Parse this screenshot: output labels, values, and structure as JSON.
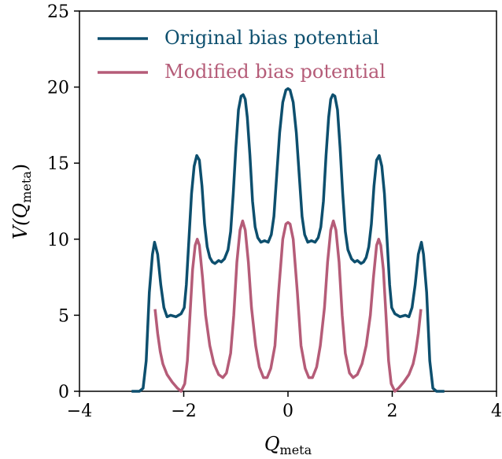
{
  "chart_data": {
    "type": "line",
    "xlabel": "Q",
    "xlabel_sub": "meta",
    "ylabel": "V(Q",
    "ylabel_sub": "meta",
    "ylabel_close": ")",
    "xlim": [
      -4,
      4
    ],
    "ylim": [
      0,
      25
    ],
    "xticks": [
      -4,
      -2,
      0,
      2,
      4
    ],
    "xtick_labels": [
      "−4",
      "−2",
      "0",
      "2",
      "4"
    ],
    "yticks": [
      0,
      5,
      10,
      15,
      20,
      25
    ],
    "ytick_labels": [
      "0",
      "5",
      "10",
      "15",
      "20",
      "25"
    ],
    "grid": false,
    "legend_position": "top-left",
    "series": [
      {
        "name": "Original bias potential",
        "color": "#0d4f6e",
        "points": [
          [
            -3.0,
            0.0
          ],
          [
            -2.85,
            0.0
          ],
          [
            -2.78,
            0.2
          ],
          [
            -2.72,
            2.0
          ],
          [
            -2.66,
            6.5
          ],
          [
            -2.6,
            9.0
          ],
          [
            -2.56,
            9.8
          ],
          [
            -2.5,
            9.0
          ],
          [
            -2.44,
            7.0
          ],
          [
            -2.38,
            5.5
          ],
          [
            -2.32,
            4.9
          ],
          [
            -2.25,
            5.0
          ],
          [
            -2.15,
            4.9
          ],
          [
            -2.05,
            5.1
          ],
          [
            -1.99,
            5.5
          ],
          [
            -1.95,
            7.0
          ],
          [
            -1.9,
            10.0
          ],
          [
            -1.85,
            13.0
          ],
          [
            -1.8,
            14.8
          ],
          [
            -1.75,
            15.5
          ],
          [
            -1.7,
            15.2
          ],
          [
            -1.65,
            13.5
          ],
          [
            -1.6,
            11.0
          ],
          [
            -1.55,
            9.5
          ],
          [
            -1.5,
            8.8
          ],
          [
            -1.45,
            8.5
          ],
          [
            -1.4,
            8.4
          ],
          [
            -1.33,
            8.6
          ],
          [
            -1.28,
            8.5
          ],
          [
            -1.22,
            8.7
          ],
          [
            -1.15,
            9.3
          ],
          [
            -1.1,
            10.5
          ],
          [
            -1.05,
            13.0
          ],
          [
            -1.0,
            16.0
          ],
          [
            -0.95,
            18.5
          ],
          [
            -0.9,
            19.4
          ],
          [
            -0.86,
            19.5
          ],
          [
            -0.82,
            19.2
          ],
          [
            -0.78,
            18.0
          ],
          [
            -0.73,
            15.5
          ],
          [
            -0.68,
            12.5
          ],
          [
            -0.63,
            10.8
          ],
          [
            -0.58,
            10.1
          ],
          [
            -0.52,
            9.8
          ],
          [
            -0.45,
            9.9
          ],
          [
            -0.38,
            9.8
          ],
          [
            -0.32,
            10.3
          ],
          [
            -0.27,
            11.5
          ],
          [
            -0.22,
            14.0
          ],
          [
            -0.16,
            17.0
          ],
          [
            -0.1,
            19.0
          ],
          [
            -0.04,
            19.8
          ],
          [
            0.0,
            19.9
          ],
          [
            0.04,
            19.8
          ],
          [
            0.1,
            19.0
          ],
          [
            0.16,
            17.0
          ],
          [
            0.22,
            14.0
          ],
          [
            0.27,
            11.5
          ],
          [
            0.32,
            10.3
          ],
          [
            0.38,
            9.8
          ],
          [
            0.45,
            9.9
          ],
          [
            0.52,
            9.8
          ],
          [
            0.58,
            10.1
          ],
          [
            0.63,
            10.8
          ],
          [
            0.68,
            12.5
          ],
          [
            0.73,
            15.5
          ],
          [
            0.78,
            18.0
          ],
          [
            0.82,
            19.2
          ],
          [
            0.86,
            19.5
          ],
          [
            0.9,
            19.4
          ],
          [
            0.95,
            18.5
          ],
          [
            1.0,
            16.0
          ],
          [
            1.05,
            13.0
          ],
          [
            1.1,
            10.5
          ],
          [
            1.15,
            9.3
          ],
          [
            1.22,
            8.7
          ],
          [
            1.28,
            8.5
          ],
          [
            1.33,
            8.6
          ],
          [
            1.4,
            8.4
          ],
          [
            1.45,
            8.5
          ],
          [
            1.5,
            8.8
          ],
          [
            1.55,
            9.5
          ],
          [
            1.6,
            11.0
          ],
          [
            1.65,
            13.5
          ],
          [
            1.7,
            15.2
          ],
          [
            1.75,
            15.5
          ],
          [
            1.8,
            14.8
          ],
          [
            1.85,
            13.0
          ],
          [
            1.9,
            10.0
          ],
          [
            1.95,
            7.0
          ],
          [
            1.99,
            5.5
          ],
          [
            2.05,
            5.1
          ],
          [
            2.15,
            4.9
          ],
          [
            2.25,
            5.0
          ],
          [
            2.32,
            4.9
          ],
          [
            2.38,
            5.5
          ],
          [
            2.44,
            7.0
          ],
          [
            2.5,
            9.0
          ],
          [
            2.56,
            9.8
          ],
          [
            2.6,
            9.0
          ],
          [
            2.66,
            6.5
          ],
          [
            2.72,
            2.0
          ],
          [
            2.78,
            0.2
          ],
          [
            2.85,
            0.0
          ],
          [
            3.0,
            0.0
          ]
        ]
      },
      {
        "name": "Modified bias potential",
        "color": "#b55c78",
        "points": [
          [
            -2.55,
            5.4
          ],
          [
            -2.5,
            3.8
          ],
          [
            -2.45,
            2.6
          ],
          [
            -2.4,
            1.8
          ],
          [
            -2.32,
            1.1
          ],
          [
            -2.22,
            0.6
          ],
          [
            -2.12,
            0.2
          ],
          [
            -2.05,
            0.0
          ],
          [
            -1.98,
            0.5
          ],
          [
            -1.93,
            2.0
          ],
          [
            -1.88,
            5.0
          ],
          [
            -1.83,
            8.0
          ],
          [
            -1.78,
            9.6
          ],
          [
            -1.74,
            10.0
          ],
          [
            -1.7,
            9.6
          ],
          [
            -1.64,
            7.5
          ],
          [
            -1.58,
            5.0
          ],
          [
            -1.5,
            3.0
          ],
          [
            -1.42,
            1.8
          ],
          [
            -1.33,
            1.1
          ],
          [
            -1.25,
            0.9
          ],
          [
            -1.18,
            1.2
          ],
          [
            -1.1,
            2.5
          ],
          [
            -1.04,
            5.0
          ],
          [
            -0.98,
            8.5
          ],
          [
            -0.92,
            10.6
          ],
          [
            -0.87,
            11.2
          ],
          [
            -0.82,
            10.6
          ],
          [
            -0.76,
            8.5
          ],
          [
            -0.7,
            5.5
          ],
          [
            -0.62,
            3.0
          ],
          [
            -0.55,
            1.6
          ],
          [
            -0.47,
            0.9
          ],
          [
            -0.4,
            0.9
          ],
          [
            -0.33,
            1.5
          ],
          [
            -0.25,
            3.0
          ],
          [
            -0.18,
            6.5
          ],
          [
            -0.1,
            10.0
          ],
          [
            -0.04,
            11.0
          ],
          [
            0.0,
            11.1
          ],
          [
            0.04,
            11.0
          ],
          [
            0.1,
            10.0
          ],
          [
            0.18,
            6.5
          ],
          [
            0.25,
            3.0
          ],
          [
            0.33,
            1.5
          ],
          [
            0.4,
            0.9
          ],
          [
            0.47,
            0.9
          ],
          [
            0.55,
            1.6
          ],
          [
            0.62,
            3.0
          ],
          [
            0.7,
            5.5
          ],
          [
            0.76,
            8.5
          ],
          [
            0.82,
            10.6
          ],
          [
            0.87,
            11.2
          ],
          [
            0.92,
            10.6
          ],
          [
            0.98,
            8.5
          ],
          [
            1.04,
            5.0
          ],
          [
            1.1,
            2.5
          ],
          [
            1.18,
            1.2
          ],
          [
            1.25,
            0.9
          ],
          [
            1.33,
            1.1
          ],
          [
            1.42,
            1.8
          ],
          [
            1.5,
            3.0
          ],
          [
            1.58,
            5.0
          ],
          [
            1.64,
            7.5
          ],
          [
            1.7,
            9.6
          ],
          [
            1.74,
            10.0
          ],
          [
            1.78,
            9.6
          ],
          [
            1.83,
            8.0
          ],
          [
            1.88,
            5.0
          ],
          [
            1.93,
            2.0
          ],
          [
            1.98,
            0.5
          ],
          [
            2.05,
            0.0
          ],
          [
            2.12,
            0.2
          ],
          [
            2.22,
            0.6
          ],
          [
            2.32,
            1.1
          ],
          [
            2.4,
            1.8
          ],
          [
            2.45,
            2.6
          ],
          [
            2.5,
            3.8
          ],
          [
            2.55,
            5.4
          ]
        ]
      }
    ]
  }
}
